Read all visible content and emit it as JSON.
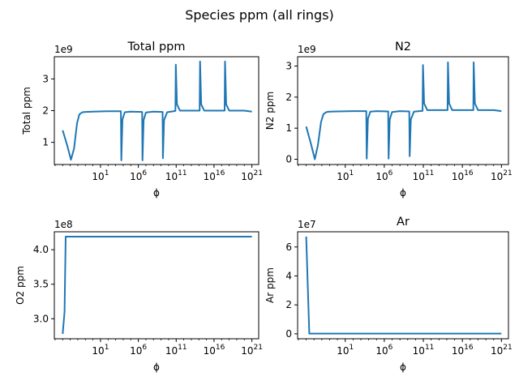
{
  "figure": {
    "suptitle": "Species ppm (all rings)"
  },
  "chart_data": [
    {
      "type": "line",
      "title": "Total ppm",
      "xlabel": "ϕ",
      "ylabel": "Total ppm",
      "xscale": "log",
      "offset_text": "1e9",
      "x_ticks": [
        {
          "label": "10",
          "exp": "1"
        },
        {
          "label": "10",
          "exp": "6"
        },
        {
          "label": "10",
          "exp": "11"
        },
        {
          "label": "10",
          "exp": "16"
        },
        {
          "label": "10",
          "exp": "21"
        }
      ],
      "x_tick_values": [
        1,
        6,
        11,
        16,
        21
      ],
      "y_ticks": [
        {
          "value": 1,
          "label": "1"
        },
        {
          "value": 2,
          "label": "2"
        },
        {
          "value": 3,
          "label": "3"
        }
      ],
      "xlim": [
        -5.1,
        21.9
      ],
      "ylim": [
        0.3,
        3.7
      ],
      "line_color": "#1f77b4",
      "series": [
        {
          "log10_x": [
            -4,
            -3.4,
            -2.9,
            -2.5,
            -2.1,
            -1.8,
            -1.4,
            -1,
            0,
            2,
            3.7,
            3.75,
            3.9,
            4.2,
            5,
            6.5,
            6.55,
            6.7,
            7,
            8,
            9.2,
            9.25,
            9.4,
            9.8,
            10.9,
            10.95,
            11.1,
            11.5,
            13,
            14.1,
            14.15,
            14.3,
            14.7,
            16.5,
            17.4,
            17.45,
            17.6,
            18,
            20,
            21
          ],
          "values": [
            1.38,
            0.9,
            0.45,
            0.8,
            1.6,
            1.88,
            1.95,
            1.96,
            1.97,
            1.98,
            1.98,
            0.43,
            1.72,
            1.95,
            1.97,
            1.96,
            0.43,
            1.7,
            1.94,
            1.97,
            1.96,
            0.5,
            1.7,
            1.95,
            1.99,
            3.45,
            2.2,
            2.0,
            2.0,
            2.0,
            3.55,
            2.2,
            2.0,
            2.0,
            2.0,
            3.55,
            2.2,
            2.0,
            2.0,
            1.97
          ]
        }
      ]
    },
    {
      "type": "line",
      "title": "N2",
      "xlabel": "ϕ",
      "ylabel": "N2 ppm",
      "xscale": "log",
      "offset_text": "1e9",
      "x_ticks": [
        {
          "label": "10",
          "exp": "1"
        },
        {
          "label": "10",
          "exp": "6"
        },
        {
          "label": "10",
          "exp": "11"
        },
        {
          "label": "10",
          "exp": "16"
        },
        {
          "label": "10",
          "exp": "21"
        }
      ],
      "x_tick_values": [
        1,
        6,
        11,
        16,
        21
      ],
      "y_ticks": [
        {
          "value": 0,
          "label": "0"
        },
        {
          "value": 1,
          "label": "1"
        },
        {
          "value": 2,
          "label": "2"
        },
        {
          "value": 3,
          "label": "3"
        }
      ],
      "xlim": [
        -5.1,
        21.9
      ],
      "ylim": [
        -0.17,
        3.3
      ],
      "line_color": "#1f77b4",
      "series": [
        {
          "log10_x": [
            -4,
            -3.4,
            -2.9,
            -2.5,
            -2.1,
            -1.8,
            -1.4,
            -1,
            0,
            2,
            3.7,
            3.75,
            3.9,
            4.2,
            5,
            6.5,
            6.55,
            6.7,
            7,
            8,
            9.2,
            9.25,
            9.4,
            9.8,
            10.9,
            10.95,
            11.1,
            11.5,
            13,
            14.1,
            14.15,
            14.3,
            14.7,
            16.5,
            17.4,
            17.45,
            17.6,
            18,
            20,
            21
          ],
          "values": [
            1.05,
            0.5,
            0.0,
            0.45,
            1.2,
            1.45,
            1.52,
            1.53,
            1.54,
            1.55,
            1.55,
            0.02,
            1.3,
            1.53,
            1.55,
            1.54,
            0.02,
            1.28,
            1.52,
            1.55,
            1.54,
            0.1,
            1.28,
            1.53,
            1.56,
            3.03,
            1.8,
            1.58,
            1.58,
            1.58,
            3.12,
            1.8,
            1.58,
            1.58,
            1.58,
            3.12,
            1.8,
            1.58,
            1.58,
            1.55
          ]
        }
      ]
    },
    {
      "type": "line",
      "title": "",
      "xlabel": "ϕ",
      "ylabel": "O2 ppm",
      "xscale": "log",
      "offset_text": "1e8",
      "x_ticks": [
        {
          "label": "10",
          "exp": "1"
        },
        {
          "label": "10",
          "exp": "6"
        },
        {
          "label": "10",
          "exp": "11"
        },
        {
          "label": "10",
          "exp": "16"
        },
        {
          "label": "10",
          "exp": "21"
        }
      ],
      "x_tick_values": [
        1,
        6,
        11,
        16,
        21
      ],
      "y_ticks": [
        {
          "value": 3.0,
          "label": "3.0"
        },
        {
          "value": 3.5,
          "label": "3.5"
        },
        {
          "value": 4.0,
          "label": "4.0"
        }
      ],
      "xlim": [
        -5.1,
        21.9
      ],
      "ylim": [
        2.71,
        4.26
      ],
      "line_color": "#1f77b4",
      "series": [
        {
          "log10_x": [
            -4,
            -3.75,
            -3.6,
            0,
            10,
            21
          ],
          "values": [
            2.78,
            3.1,
            4.19,
            4.19,
            4.19,
            4.19
          ]
        }
      ]
    },
    {
      "type": "line",
      "title": "Ar",
      "xlabel": "ϕ",
      "ylabel": "Ar ppm",
      "xscale": "log",
      "offset_text": "1e7",
      "x_ticks": [
        {
          "label": "10",
          "exp": "1"
        },
        {
          "label": "10",
          "exp": "6"
        },
        {
          "label": "10",
          "exp": "11"
        },
        {
          "label": "10",
          "exp": "16"
        },
        {
          "label": "10",
          "exp": "21"
        }
      ],
      "x_tick_values": [
        1,
        6,
        11,
        16,
        21
      ],
      "y_ticks": [
        {
          "value": 0,
          "label": "0"
        },
        {
          "value": 2,
          "label": "2"
        },
        {
          "value": 4,
          "label": "4"
        },
        {
          "value": 6,
          "label": "6"
        }
      ],
      "xlim": [
        -5.1,
        21.9
      ],
      "ylim": [
        -0.34,
        7.05
      ],
      "line_color": "#1f77b4",
      "series": [
        {
          "log10_x": [
            -4,
            -3.6,
            0,
            10,
            21
          ],
          "values": [
            6.72,
            0.02,
            0.02,
            0.02,
            0.02
          ]
        }
      ]
    }
  ]
}
